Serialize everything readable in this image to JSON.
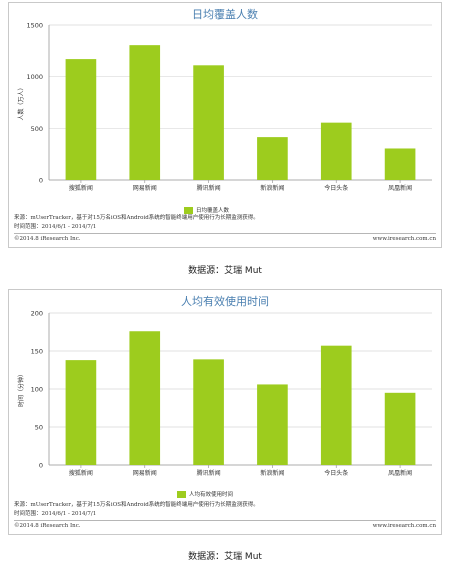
{
  "chart_data": [
    {
      "type": "bar",
      "title": "日均覆盖人数",
      "ylabel": "人数（万人）",
      "categories": [
        "搜狐新闻",
        "网易新闻",
        "腾讯新闻",
        "新浪新闻",
        "今日头条",
        "凤凰新闻"
      ],
      "series": [
        {
          "name": "日均覆盖人数",
          "values": [
            1170,
            1305,
            1110,
            415,
            555,
            305
          ]
        }
      ],
      "ylim": [
        0,
        1500
      ],
      "yticks": [
        "0",
        "500",
        "1000",
        "1500"
      ],
      "grid": true,
      "legend": "bottom-center",
      "color": "#9dcc1e",
      "footer": {
        "source": "来源：mUserTracker，基于对15万名iOS和Android系统的智能终端用户使用行为长期监测获得。",
        "period": "时间范围：2014/6/1 - 2014/7/1",
        "copyright": "©2014.8 iResearch Inc.",
        "site": "www.iresearch.com.cn"
      },
      "caption": "数据源：艾瑞 Mut"
    },
    {
      "type": "bar",
      "title": "人均有效使用时间",
      "ylabel": "时间（分钟）",
      "categories": [
        "搜狐新闻",
        "网易新闻",
        "腾讯新闻",
        "新浪新闻",
        "今日头条",
        "凤凰新闻"
      ],
      "series": [
        {
          "name": "人均有效使用时间",
          "values": [
            138,
            176,
            139,
            106,
            157,
            95
          ]
        }
      ],
      "ylim": [
        0,
        200
      ],
      "yticks": [
        "0",
        "50",
        "100",
        "150",
        "200"
      ],
      "grid": true,
      "legend": "bottom-center",
      "color": "#9dcc1e",
      "footer": {
        "source": "来源：mUserTracker，基于对15万名iOS和Android系统的智能终端用户使用行为长期监测获得。",
        "period": "时间范围：2014/6/1 - 2014/7/1",
        "copyright": "©2014.8 iResearch Inc.",
        "site": "www.iresearch.com.cn"
      },
      "caption": "数据源：艾瑞 Mut"
    }
  ]
}
